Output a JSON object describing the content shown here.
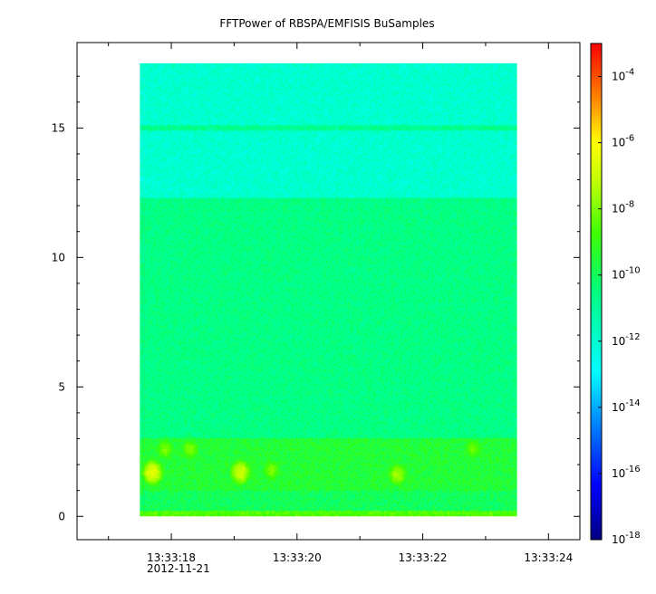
{
  "chart_data": {
    "type": "heatmap",
    "title": "FFTPower of RBSPA/EMFISIS  BuSamples",
    "x_axis": {
      "major_ticks": [
        {
          "label": "13:33:18",
          "value": "13:33:18"
        },
        {
          "label": "13:33:20",
          "value": "13:33:20"
        },
        {
          "label": "13:33:22",
          "value": "13:33:22"
        },
        {
          "label": "13:33:24",
          "value": "13:33:24"
        }
      ],
      "date_label": "2012-11-21",
      "range": [
        "13:33:16.5",
        "13:33:24.5"
      ]
    },
    "y_axis": {
      "tick_labels": [
        "0",
        "5",
        "10",
        "15"
      ],
      "tick_values": [
        0,
        5,
        10,
        15
      ],
      "range": [
        -0.9,
        18.3
      ]
    },
    "color_scale": {
      "scale": "log",
      "range": [
        1e-18,
        0.001
      ],
      "colormap": "rainbow",
      "ticks": [
        {
          "base": "10",
          "exp": "-4",
          "value": 0.0001
        },
        {
          "base": "10",
          "exp": "-6",
          "value": 1e-06
        },
        {
          "base": "10",
          "exp": "-8",
          "value": 1e-08
        },
        {
          "base": "10",
          "exp": "-10",
          "value": 1e-10
        },
        {
          "base": "10",
          "exp": "-12",
          "value": 1e-12
        },
        {
          "base": "10",
          "exp": "-14",
          "value": 1e-14
        },
        {
          "base": "10",
          "exp": "-16",
          "value": 1e-16
        },
        {
          "base": "10",
          "exp": "-18",
          "value": 1e-18
        }
      ]
    },
    "data_extent": {
      "x_start": "13:33:17.5",
      "x_end": "13:33:23.5",
      "y_min": 0,
      "y_max": 17.5
    },
    "bands": [
      {
        "y_from": 0,
        "y_to": 0.2,
        "log_power": -8.5
      },
      {
        "y_from": 0.2,
        "y_to": 1.0,
        "log_power": -10.0
      },
      {
        "y_from": 1.0,
        "y_to": 3.0,
        "log_power": -9.5
      },
      {
        "y_from": 3.0,
        "y_to": 12.3,
        "log_power": -10.6
      },
      {
        "y_from": 12.3,
        "y_to": 17.5,
        "log_power": -12.0
      }
    ],
    "line_features": [
      {
        "y": 15.0,
        "log_power": -10.8
      }
    ],
    "hotspots": [
      {
        "t": 17.7,
        "y": 1.7,
        "log_power": -6.5
      },
      {
        "t": 19.1,
        "y": 1.7,
        "log_power": -6.8
      },
      {
        "t": 21.6,
        "y": 1.6,
        "log_power": -7.5
      },
      {
        "t": 17.9,
        "y": 2.6,
        "log_power": -8.0
      },
      {
        "t": 18.3,
        "y": 2.6,
        "log_power": -8.0
      },
      {
        "t": 19.6,
        "y": 1.8,
        "log_power": -8.0
      },
      {
        "t": 22.8,
        "y": 2.6,
        "log_power": -8.2
      }
    ]
  }
}
